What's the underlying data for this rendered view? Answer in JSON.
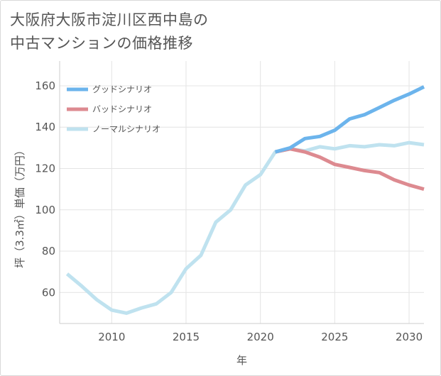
{
  "title": "大阪府大阪市淀川区西中島の\n中古マンションの価格推移",
  "chart_data": {
    "type": "line",
    "xlabel": "年",
    "ylabel": "坪（3.3㎡）単価（万円）",
    "xlim": [
      2006.5,
      2031
    ],
    "ylim": [
      45,
      172
    ],
    "xticks": [
      2010,
      2015,
      2020,
      2025,
      2030
    ],
    "yticks": [
      60,
      80,
      100,
      120,
      140,
      160
    ],
    "grid": true,
    "legend_position": "top-left",
    "series": [
      {
        "name": "グッドシナリオ",
        "color": "#6cb4ec",
        "x": [
          2021,
          2022,
          2023,
          2024,
          2025,
          2026,
          2027,
          2028,
          2029,
          2030,
          2031
        ],
        "values": [
          128,
          130,
          134.5,
          135.5,
          138.5,
          144,
          146,
          149.5,
          153,
          156,
          159.5
        ]
      },
      {
        "name": "バッドシナリオ",
        "color": "#dd8a90",
        "x": [
          2021,
          2022,
          2023,
          2024,
          2025,
          2026,
          2027,
          2028,
          2029,
          2030,
          2031
        ],
        "values": [
          128,
          129.5,
          128,
          125.5,
          122,
          120.5,
          119,
          118,
          114.5,
          112,
          110
        ]
      },
      {
        "name": "ノーマルシナリオ",
        "color": "#bfe2ef",
        "x": [
          2007,
          2008,
          2009,
          2010,
          2011,
          2012,
          2013,
          2014,
          2015,
          2016,
          2017,
          2018,
          2019,
          2020,
          2021,
          2022,
          2023,
          2024,
          2025,
          2026,
          2027,
          2028,
          2029,
          2030,
          2031
        ],
        "values": [
          69,
          63,
          56.5,
          51.5,
          50,
          52.5,
          54.5,
          60,
          71.5,
          78,
          94,
          100,
          112,
          117,
          128,
          129.5,
          128.5,
          130.5,
          129.5,
          131,
          130.5,
          131.5,
          131,
          132.5,
          131.5
        ]
      }
    ]
  }
}
